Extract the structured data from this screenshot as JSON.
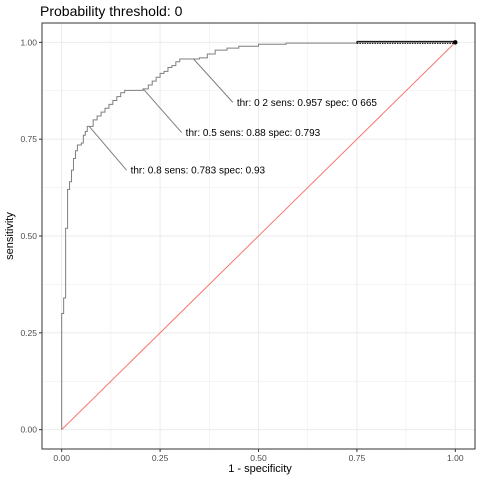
{
  "chart_data": {
    "type": "line",
    "title": "Probability threshold: 0",
    "xlabel": "1 - specificity",
    "ylabel": "sensitivity",
    "xlim": [
      -0.05,
      1.05
    ],
    "ylim": [
      -0.05,
      1.05
    ],
    "x_ticks": [
      0,
      0.25,
      0.5,
      0.75,
      1
    ],
    "x_tick_labels": [
      "0.00",
      "0.25",
      "0.50",
      "0.75",
      "1.00"
    ],
    "y_ticks": [
      0,
      0.25,
      0.5,
      0.75,
      1
    ],
    "y_tick_labels": [
      "0.00",
      "0.25",
      "0.50",
      "0.75",
      "1.00"
    ],
    "grid": true,
    "colors": {
      "roc": "#7f7f7f",
      "diagonal": "#f8766d",
      "grid_major": "#ebebeb",
      "panel_border": "#333333",
      "highlight": "#000000"
    },
    "series": [
      {
        "values": [
          [
            0.0,
            0.0
          ],
          [
            0.0,
            0.3
          ],
          [
            0.005,
            0.3
          ],
          [
            0.005,
            0.34
          ],
          [
            0.01,
            0.34
          ],
          [
            0.01,
            0.52
          ],
          [
            0.015,
            0.52
          ],
          [
            0.015,
            0.62
          ],
          [
            0.02,
            0.62
          ],
          [
            0.02,
            0.64
          ],
          [
            0.025,
            0.64
          ],
          [
            0.025,
            0.67
          ],
          [
            0.03,
            0.67
          ],
          [
            0.03,
            0.7
          ],
          [
            0.035,
            0.7
          ],
          [
            0.035,
            0.72
          ],
          [
            0.04,
            0.72
          ],
          [
            0.04,
            0.735
          ],
          [
            0.05,
            0.735
          ],
          [
            0.05,
            0.74
          ],
          [
            0.055,
            0.74
          ],
          [
            0.055,
            0.76
          ],
          [
            0.06,
            0.76
          ],
          [
            0.06,
            0.77
          ],
          [
            0.065,
            0.77
          ],
          [
            0.065,
            0.783
          ],
          [
            0.07,
            0.783
          ],
          [
            0.08,
            0.783
          ],
          [
            0.08,
            0.8
          ],
          [
            0.09,
            0.8
          ],
          [
            0.09,
            0.81
          ],
          [
            0.1,
            0.81
          ],
          [
            0.1,
            0.82
          ],
          [
            0.11,
            0.82
          ],
          [
            0.11,
            0.83
          ],
          [
            0.12,
            0.83
          ],
          [
            0.12,
            0.84
          ],
          [
            0.13,
            0.84
          ],
          [
            0.13,
            0.85
          ],
          [
            0.14,
            0.85
          ],
          [
            0.14,
            0.86
          ],
          [
            0.15,
            0.86
          ],
          [
            0.15,
            0.87
          ],
          [
            0.16,
            0.87
          ],
          [
            0.16,
            0.876
          ],
          [
            0.207,
            0.876
          ],
          [
            0.207,
            0.88
          ],
          [
            0.22,
            0.88
          ],
          [
            0.22,
            0.89
          ],
          [
            0.23,
            0.89
          ],
          [
            0.23,
            0.9
          ],
          [
            0.24,
            0.9
          ],
          [
            0.24,
            0.91
          ],
          [
            0.25,
            0.91
          ],
          [
            0.25,
            0.92
          ],
          [
            0.26,
            0.92
          ],
          [
            0.26,
            0.925
          ],
          [
            0.27,
            0.925
          ],
          [
            0.27,
            0.935
          ],
          [
            0.28,
            0.935
          ],
          [
            0.28,
            0.94
          ],
          [
            0.29,
            0.94
          ],
          [
            0.29,
            0.95
          ],
          [
            0.3,
            0.95
          ],
          [
            0.3,
            0.957
          ],
          [
            0.335,
            0.957
          ],
          [
            0.35,
            0.957
          ],
          [
            0.35,
            0.96
          ],
          [
            0.37,
            0.96
          ],
          [
            0.37,
            0.97
          ],
          [
            0.39,
            0.97
          ],
          [
            0.39,
            0.98
          ],
          [
            0.42,
            0.98
          ],
          [
            0.42,
            0.985
          ],
          [
            0.45,
            0.985
          ],
          [
            0.45,
            0.99
          ],
          [
            0.5,
            0.99
          ],
          [
            0.5,
            0.995
          ],
          [
            0.57,
            0.995
          ],
          [
            0.57,
            0.998
          ],
          [
            0.75,
            0.998
          ],
          [
            0.75,
            1.0
          ],
          [
            1.0,
            1.0
          ]
        ]
      }
    ],
    "reference_line": [
      [
        0,
        0
      ],
      [
        1,
        1
      ]
    ],
    "highlight_segment": [
      [
        0.75,
        1.0
      ],
      [
        1.0,
        1.0
      ]
    ],
    "highlight_point": [
      1.0,
      1.0
    ],
    "annotations": [
      {
        "text": "thr:  0.8 sens: 0.783 spec: 0.93",
        "point": [
          0.07,
          0.783
        ],
        "label_at": [
          0.175,
          0.67
        ]
      },
      {
        "text": "thr:  0.5 sens: 0.88 spec: 0.793",
        "point": [
          0.207,
          0.88
        ],
        "label_at": [
          0.315,
          0.767
        ]
      },
      {
        "text": "thr:  0 2 sens: 0.957 spec: 0 665",
        "point": [
          0.335,
          0.957
        ],
        "label_at": [
          0.445,
          0.845
        ]
      }
    ]
  }
}
